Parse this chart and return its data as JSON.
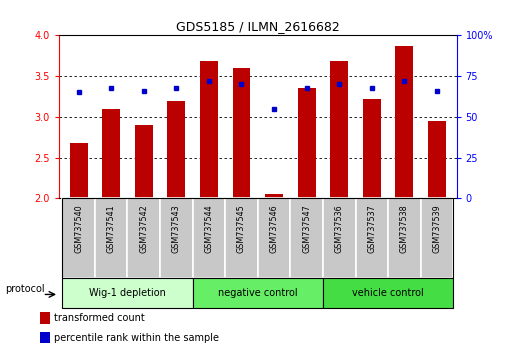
{
  "title": "GDS5185 / ILMN_2616682",
  "samples": [
    "GSM737540",
    "GSM737541",
    "GSM737542",
    "GSM737543",
    "GSM737544",
    "GSM737545",
    "GSM737546",
    "GSM737547",
    "GSM737536",
    "GSM737537",
    "GSM737538",
    "GSM737539"
  ],
  "bar_values": [
    2.68,
    3.1,
    2.9,
    3.2,
    3.68,
    3.6,
    2.05,
    3.35,
    3.68,
    3.22,
    3.87,
    2.95
  ],
  "dot_values": [
    65,
    68,
    66,
    68,
    72,
    70,
    55,
    68,
    70,
    68,
    72,
    66
  ],
  "bar_color": "#bb0000",
  "dot_color": "#0000cc",
  "ylim_left": [
    2.0,
    4.0
  ],
  "ylim_right": [
    0,
    100
  ],
  "yticks_left": [
    2.0,
    2.5,
    3.0,
    3.5,
    4.0
  ],
  "yticks_right": [
    0,
    25,
    50,
    75,
    100
  ],
  "ytick_right_labels": [
    "0",
    "25",
    "50",
    "75",
    "100%"
  ],
  "groups": [
    {
      "label": "Wig-1 depletion",
      "start": 0,
      "end": 3,
      "color": "#ccffcc"
    },
    {
      "label": "negative control",
      "start": 4,
      "end": 7,
      "color": "#66ee66"
    },
    {
      "label": "vehicle control",
      "start": 8,
      "end": 11,
      "color": "#44dd44"
    }
  ],
  "protocol_label": "protocol",
  "legend_items": [
    {
      "label": "transformed count",
      "color": "#bb0000"
    },
    {
      "label": "percentile rank within the sample",
      "color": "#0000cc"
    }
  ],
  "bar_bottom": 2.0,
  "bar_width": 0.55,
  "sample_box_color": "#c8c8c8",
  "xlim": [
    -0.6,
    11.6
  ]
}
